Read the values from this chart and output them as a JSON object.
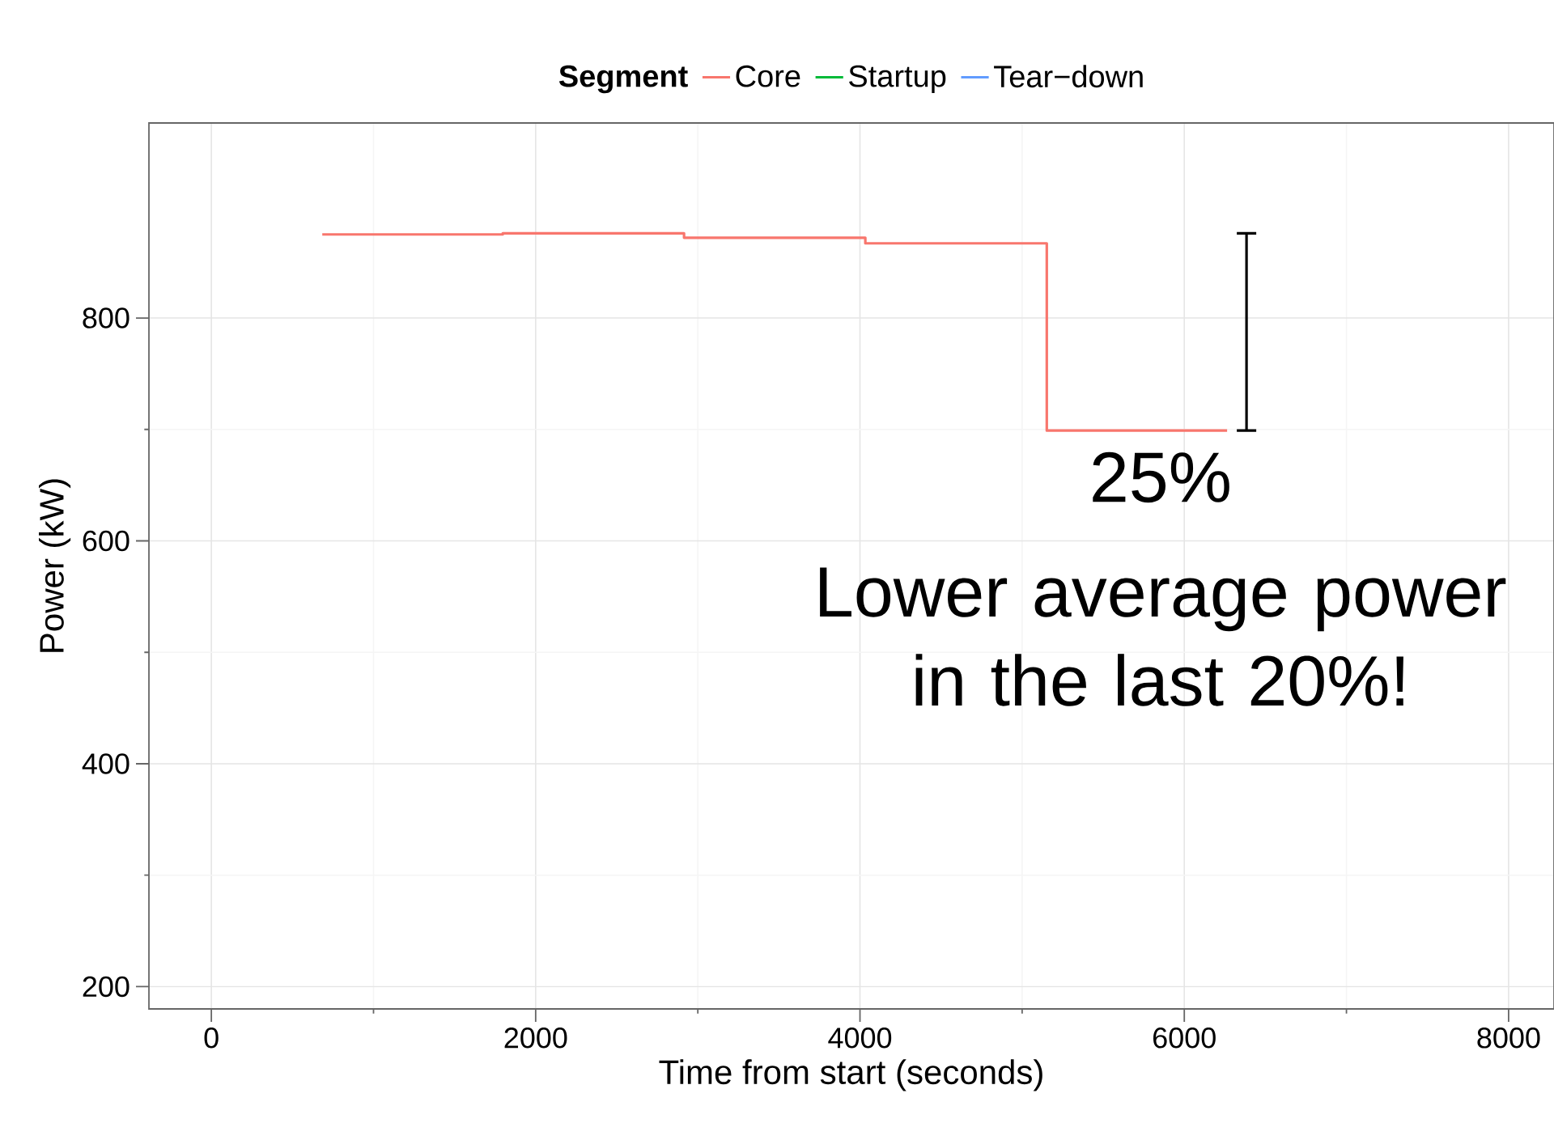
{
  "chart_data": {
    "type": "step",
    "xlabel": "Time from start (seconds)",
    "ylabel": "Power (kW)",
    "legend_title": "Segment",
    "legend": "top",
    "series": [
      {
        "name": "Core",
        "color": "#f8766d",
        "x": [
          684,
          1797,
          2915,
          4033,
          5152,
          6264
        ],
        "values": [
          875,
          876,
          872,
          867,
          699,
          699
        ]
      },
      {
        "name": "Startup",
        "color": "#00ba38"
      },
      {
        "name": "Tear−down",
        "color": "#619cff"
      }
    ],
    "xlim": [
      -385,
      8280
    ],
    "ylim": [
      180,
      975
    ],
    "xticks": [
      0,
      2000,
      4000,
      6000,
      8000
    ],
    "yticks": [
      200,
      400,
      600,
      800
    ],
    "grid": true,
    "annotations": [
      "25%",
      "Lower average power in the last 20%!"
    ]
  }
}
